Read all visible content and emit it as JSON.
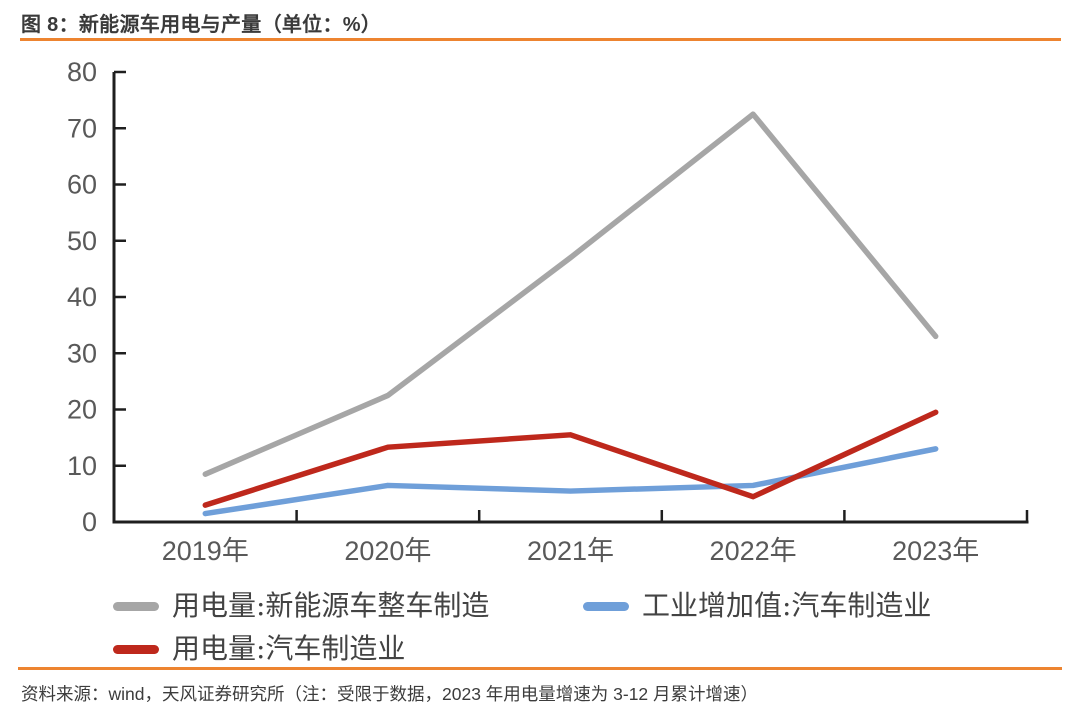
{
  "header": {
    "title": "图 8：新能源车用电与产量（单位：%）"
  },
  "chart_data": {
    "type": "line",
    "title": "新能源车用电与产量",
    "unit": "%",
    "categories": [
      "2019年",
      "2020年",
      "2021年",
      "2022年",
      "2023年"
    ],
    "series": [
      {
        "name": "用电量:新能源车整车制造",
        "color": "#a6a6a6",
        "values": [
          8.5,
          22.5,
          47,
          72.5,
          33
        ]
      },
      {
        "name": "工业增加值:汽车制造业",
        "color": "#6f9fd9",
        "values": [
          1.5,
          6.5,
          5.5,
          6.5,
          13
        ]
      },
      {
        "name": "用电量:汽车制造业",
        "color": "#be281c",
        "values": [
          3,
          13.3,
          15.5,
          4.5,
          19.5
        ]
      }
    ],
    "ylim": [
      0,
      80
    ],
    "yticks": [
      0,
      10,
      20,
      30,
      40,
      50,
      60,
      70,
      80
    ],
    "grid": false,
    "legend_position": "bottom"
  },
  "legend": {
    "items": [
      {
        "label": "用电量:新能源车整车制造",
        "color": "#a6a6a6"
      },
      {
        "label": "工业增加值:汽车制造业",
        "color": "#6f9fd9"
      },
      {
        "label": "用电量:汽车制造业",
        "color": "#be281c"
      }
    ]
  },
  "footer": {
    "source": "资料来源：wind，天风证券研究所（注：受限于数据，2023 年用电量增速为 3-12 月累计增速）"
  },
  "colors": {
    "accent_rule": "#ed8430",
    "axis": "#1f1f1f",
    "tick_label": "#595959"
  }
}
